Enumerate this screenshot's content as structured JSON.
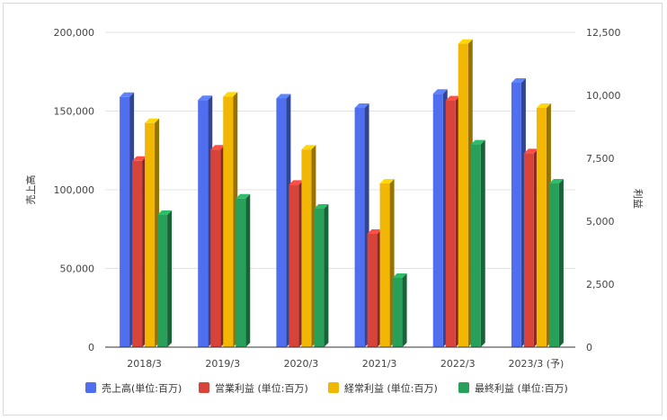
{
  "chart_data": {
    "type": "bar",
    "title": "",
    "categories": [
      "2018/3",
      "2019/3",
      "2020/3",
      "2021/3",
      "2022/3",
      "2023/3 (予)"
    ],
    "ylabel_left": "売上高",
    "ylabel_right": "利益",
    "ylim_left": [
      0,
      200000
    ],
    "ylim_right": [
      0,
      12500
    ],
    "yticks_left": [
      "0",
      "50,000",
      "100,000",
      "150,000",
      "200,000"
    ],
    "yticks_right": [
      "0",
      "2,500",
      "5,000",
      "7,500",
      "10,000",
      "12,500"
    ],
    "grid": true,
    "legend_position": "bottom",
    "series": [
      {
        "name": "売上高(単位:百万)",
        "axis": "left",
        "color": "#4f6ff0",
        "values": [
          159000,
          157000,
          158000,
          152000,
          161000,
          168000
        ]
      },
      {
        "name": "営業利益 (単位:百万)",
        "axis": "right",
        "color": "#d8433a",
        "values": [
          7400,
          7850,
          6450,
          4500,
          9800,
          7700
        ]
      },
      {
        "name": "経常利益 (単位:百万)",
        "axis": "right",
        "color": "#f2b705",
        "values": [
          8900,
          9950,
          7850,
          6500,
          12050,
          9500
        ]
      },
      {
        "name": "最終利益 (単位:百万)",
        "axis": "right",
        "color": "#28a05a",
        "values": [
          5250,
          5900,
          5500,
          2750,
          8050,
          6500
        ]
      }
    ]
  }
}
